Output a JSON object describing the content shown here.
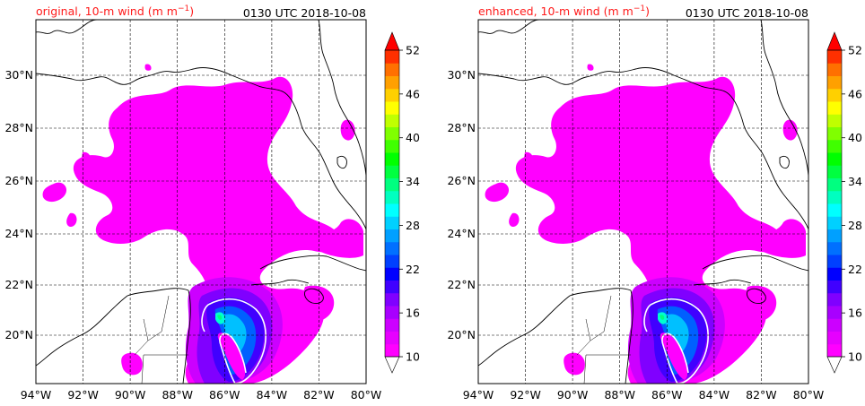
{
  "panels": [
    {
      "title_left": "original, 10-m wind (m m",
      "title_sup": "−1",
      "title_close": ")",
      "title_right": "0130 UTC 2018-10-08"
    },
    {
      "title_left": "enhanced, 10-m wind (m m",
      "title_sup": "−1",
      "title_close": ")",
      "title_right": "0130 UTC 2018-10-08"
    }
  ],
  "axes": {
    "lon_labels": [
      "94°W",
      "92°W",
      "90°W",
      "88°W",
      "86°W",
      "84°W",
      "82°W",
      "80°W"
    ],
    "lat_labels": [
      "30°N",
      "28°N",
      "26°N",
      "24°N",
      "22°N",
      "20°N"
    ],
    "lon_range": [
      -94,
      -80
    ],
    "lat_range": [
      18.2,
      32.6
    ]
  },
  "colorbar": {
    "labels": [
      "52",
      "46",
      "40",
      "34",
      "28",
      "22",
      "16",
      "10"
    ],
    "min": 10,
    "max": 52,
    "step": 2,
    "colors": [
      "#ff00ff",
      "#e600ff",
      "#cc00ff",
      "#a800ff",
      "#8000ff",
      "#4000ff",
      "#0000ff",
      "#0040ff",
      "#0070ff",
      "#00a0ff",
      "#00d0ff",
      "#00ffff",
      "#00ffc0",
      "#00ff80",
      "#00ff40",
      "#00ff00",
      "#40ff00",
      "#80ff00",
      "#c0ff00",
      "#ffff00",
      "#ffd000",
      "#ffa000",
      "#ff7000",
      "#ff3000",
      "#ff0000"
    ]
  },
  "colors": {
    "wind_base": "#ff00ff",
    "coast": "#000000",
    "contour": "#ffffff",
    "title_red": "#ff1a1a"
  }
}
